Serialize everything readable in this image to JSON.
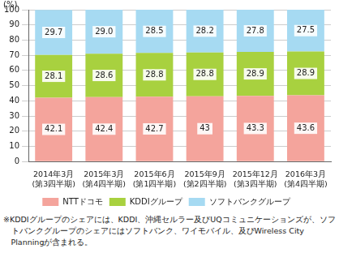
{
  "chart_data": {
    "type": "bar",
    "stacked": true,
    "data_labels": true,
    "grid": true,
    "legend": "bottom",
    "ylabel": "(%)",
    "categories": [
      "2014年3月\n(第3四半期)",
      "2015年3月\n(第4四半期)",
      "2015年6月\n(第1四半期)",
      "2015年9月\n(第2四半期)",
      "2015年12月\n(第3四半期)",
      "2016年3月\n(第4四半期)"
    ],
    "series": [
      {
        "name": "NTTドコモ",
        "color": "#f4a49c",
        "values": [
          42.1,
          42.4,
          42.7,
          43.0,
          43.3,
          43.6
        ]
      },
      {
        "name": "KDDIグループ",
        "color": "#a8d13f",
        "values": [
          28.1,
          28.6,
          28.8,
          28.8,
          28.9,
          28.9
        ]
      },
      {
        "name": "ソフトバンクグループ",
        "color": "#a6daf2",
        "values": [
          29.7,
          29.0,
          28.5,
          28.2,
          27.8,
          27.5
        ],
        "value_labels": [
          "29.7",
          "29.0",
          "28.5",
          "28.2",
          "27.8",
          "27.5"
        ]
      }
    ],
    "ylim": [
      0,
      100
    ],
    "yticks": [
      0,
      10,
      20,
      30,
      40,
      50,
      60,
      70,
      80,
      90,
      100
    ],
    "annotations": [
      "※KDDIグループのシェアには、KDDI、沖縄セルラー及びUQコミュニケーションズが、ソフトバンクグループのシェアにはソフトバンク、ワイモバイル、及びWireless City Planningが含まれる。"
    ]
  }
}
